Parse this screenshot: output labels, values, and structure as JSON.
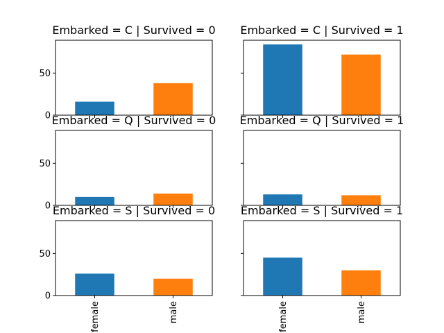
{
  "chart_data": [
    {
      "type": "bar",
      "title": "Embarked = C | Survived = 0",
      "categories": [
        "female",
        "male"
      ],
      "values": [
        16,
        38
      ],
      "colors": [
        "#1f77b4",
        "#ff7f0e"
      ],
      "ylim": [
        0,
        89
      ],
      "yticks": [
        0,
        50
      ],
      "grid": false
    },
    {
      "type": "bar",
      "title": "Embarked = C | Survived = 1",
      "categories": [
        "female",
        "male"
      ],
      "values": [
        84,
        72
      ],
      "colors": [
        "#1f77b4",
        "#ff7f0e"
      ],
      "ylim": [
        0,
        89
      ],
      "yticks": [
        0,
        50
      ],
      "grid": false
    },
    {
      "type": "bar",
      "title": "Embarked = Q | Survived = 0",
      "categories": [
        "female",
        "male"
      ],
      "values": [
        10,
        14
      ],
      "colors": [
        "#1f77b4",
        "#ff7f0e"
      ],
      "ylim": [
        0,
        89
      ],
      "yticks": [
        0,
        50
      ],
      "grid": false
    },
    {
      "type": "bar",
      "title": "Embarked = Q | Survived = 1",
      "categories": [
        "female",
        "male"
      ],
      "values": [
        13,
        12
      ],
      "colors": [
        "#1f77b4",
        "#ff7f0e"
      ],
      "ylim": [
        0,
        89
      ],
      "yticks": [
        0,
        50
      ],
      "grid": false
    },
    {
      "type": "bar",
      "title": "Embarked = S | Survived = 0",
      "categories": [
        "female",
        "male"
      ],
      "values": [
        26,
        20
      ],
      "colors": [
        "#1f77b4",
        "#ff7f0e"
      ],
      "ylim": [
        0,
        89
      ],
      "yticks": [
        0,
        50
      ],
      "grid": false
    },
    {
      "type": "bar",
      "title": "Embarked = S | Survived = 1",
      "categories": [
        "female",
        "male"
      ],
      "values": [
        45,
        30
      ],
      "colors": [
        "#1f77b4",
        "#ff7f0e"
      ],
      "ylim": [
        0,
        89
      ],
      "yticks": [
        0,
        50
      ],
      "grid": false
    }
  ]
}
